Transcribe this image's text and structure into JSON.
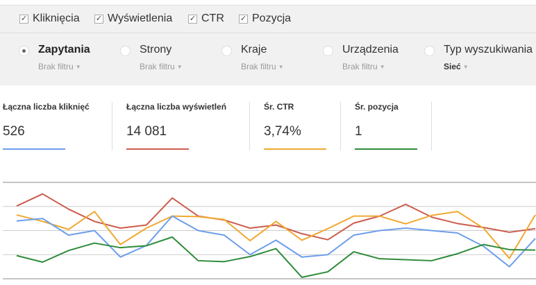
{
  "metric_checkboxes": [
    {
      "label": "Kliknięcia",
      "checked": true
    },
    {
      "label": "Wyświetlenia",
      "checked": true
    },
    {
      "label": "CTR",
      "checked": true
    },
    {
      "label": "Pozycja",
      "checked": true
    }
  ],
  "check_glyph": "✓",
  "dimensions": [
    {
      "label": "Zapytania",
      "filter": "Brak filtru",
      "selected": true
    },
    {
      "label": "Strony",
      "filter": "Brak filtru",
      "selected": false
    },
    {
      "label": "Kraje",
      "filter": "Brak filtru",
      "selected": false
    },
    {
      "label": "Urządzenia",
      "filter": "Brak filtru",
      "selected": false
    },
    {
      "label": "Typ wyszukiwania",
      "filter": "Sieć",
      "selected": false
    }
  ],
  "metrics": [
    {
      "label": "Łączna liczba kliknięć",
      "value": "526",
      "color": "#6d9eeb"
    },
    {
      "label": "Łączna liczba wyświetleń",
      "value": "14 081",
      "color": "#cc5b4c"
    },
    {
      "label": "Śr. CTR",
      "value": "3,74%",
      "color": "#f0a830"
    },
    {
      "label": "Śr. pozycja",
      "value": "1",
      "color": "#2e8b3a"
    }
  ],
  "chart_data": {
    "type": "line",
    "grid": true,
    "ylim": [
      0,
      4
    ],
    "series": [
      {
        "color": "#cc5b4c",
        "values": [
          3.02,
          3.52,
          2.89,
          2.38,
          2.1,
          2.23,
          3.35,
          2.6,
          2.44,
          2.1,
          2.23,
          1.87,
          1.62,
          2.31,
          2.6,
          3.09,
          2.56,
          2.29,
          2.13,
          1.93,
          2.08
        ]
      },
      {
        "color": "#f0a830",
        "values": [
          2.65,
          2.38,
          2.05,
          2.79,
          1.42,
          2.1,
          2.6,
          2.58,
          2.46,
          1.58,
          2.38,
          1.6,
          2.08,
          2.6,
          2.6,
          2.28,
          2.63,
          2.79,
          2.1,
          0.85,
          2.65
        ]
      },
      {
        "color": "#6d9eeb",
        "values": [
          2.4,
          2.5,
          1.81,
          2.0,
          0.9,
          1.38,
          2.6,
          2.0,
          1.81,
          1.0,
          1.6,
          0.9,
          1.0,
          1.81,
          2.0,
          2.1,
          2.0,
          1.9,
          1.35,
          0.5,
          1.67
        ]
      },
      {
        "color": "#2e8b3a",
        "values": [
          0.96,
          0.69,
          1.17,
          1.48,
          1.29,
          1.37,
          1.73,
          0.75,
          0.71,
          0.92,
          1.25,
          0.06,
          0.29,
          1.12,
          0.83,
          0.79,
          0.75,
          1.04,
          1.42,
          1.21,
          1.19
        ]
      }
    ]
  }
}
